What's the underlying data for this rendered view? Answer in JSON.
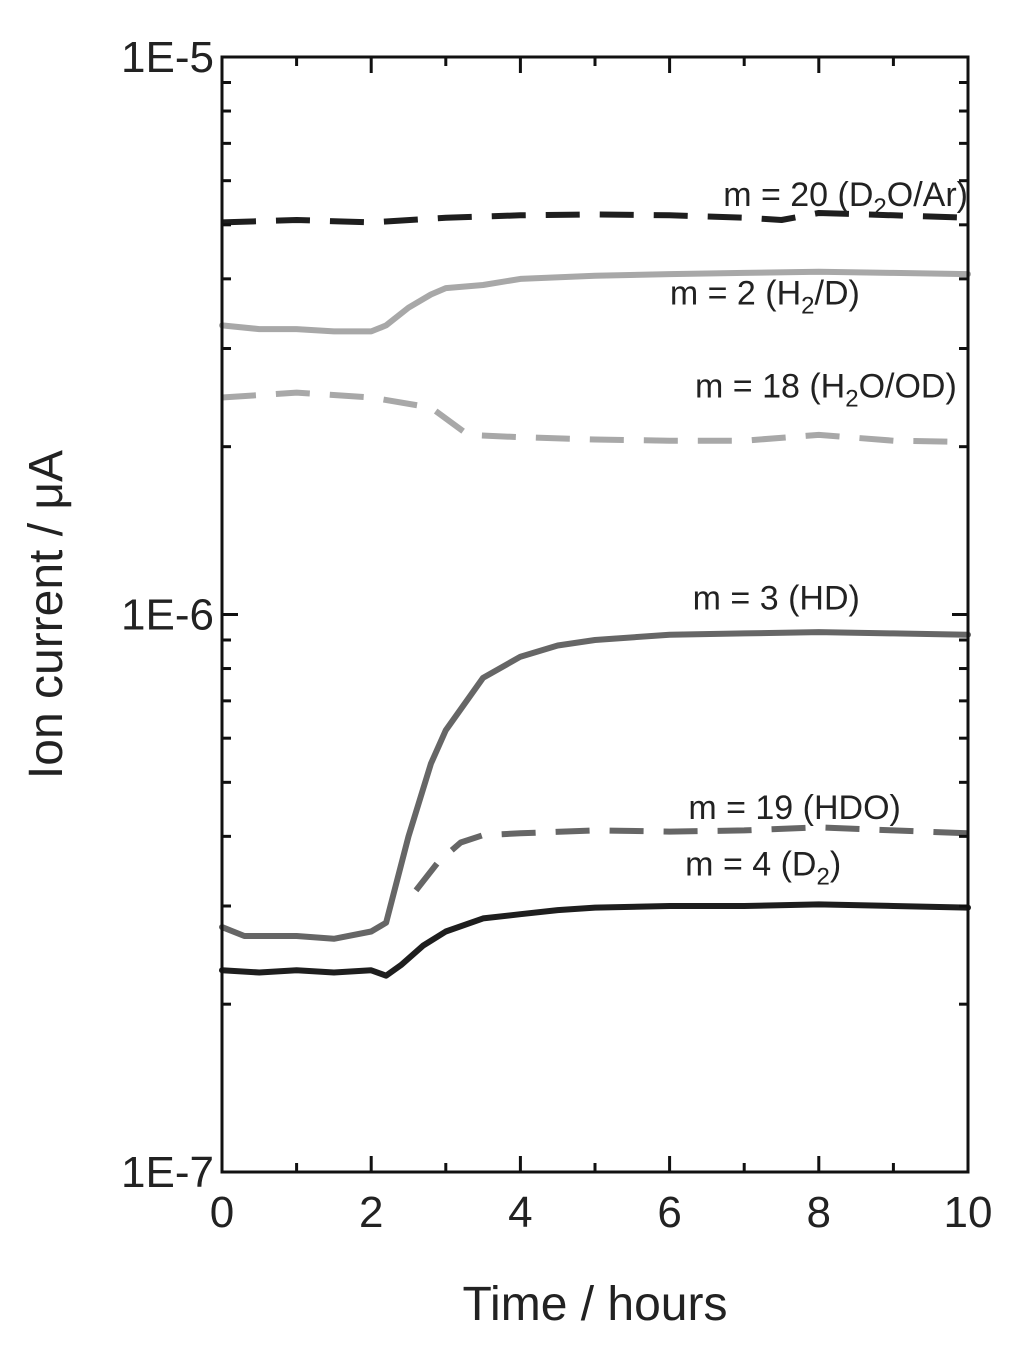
{
  "chart_data": {
    "type": "line",
    "xlabel": "Time / hours",
    "ylabel": "Ion current / μA",
    "xlim": [
      0,
      10
    ],
    "ylim": [
      1e-07,
      1e-05
    ],
    "y_scale": "log",
    "x_ticks": [
      "0",
      "2",
      "4",
      "6",
      "8",
      "10"
    ],
    "y_ticks": [
      "1E-7",
      "1E-6",
      "1E-5"
    ],
    "grid": false,
    "series": [
      {
        "name": "m = 20 (D2O/Ar)",
        "label_main": "m = 20 (D",
        "label_sub": "2",
        "label_tail": "O/Ar)",
        "color": "#1e1e1e",
        "dash": "dashed",
        "label_anchor": [
          10,
          5.4e-06
        ],
        "x": [
          0,
          1,
          2,
          3,
          4,
          5,
          6,
          7,
          7.5,
          8,
          9,
          10
        ],
        "y": [
          5.05e-06,
          5.1e-06,
          5.05e-06,
          5.15e-06,
          5.2e-06,
          5.22e-06,
          5.2e-06,
          5.15e-06,
          5.1e-06,
          5.25e-06,
          5.2e-06,
          5.15e-06
        ]
      },
      {
        "name": "m = 2 (H2/D)",
        "label_main": "m = 2 (H",
        "label_sub": "2",
        "label_tail": "/D)",
        "color": "#a8a8a8",
        "dash": "solid",
        "label_anchor": [
          8.55,
          3.6e-06
        ],
        "x": [
          0,
          0.5,
          1,
          1.5,
          2.0,
          2.2,
          2.5,
          2.8,
          3.0,
          3.5,
          4,
          5,
          6,
          7,
          8,
          9,
          10
        ],
        "y": [
          3.3e-06,
          3.25e-06,
          3.25e-06,
          3.22e-06,
          3.22e-06,
          3.3e-06,
          3.55e-06,
          3.75e-06,
          3.85e-06,
          3.9e-06,
          4e-06,
          4.05e-06,
          4.08e-06,
          4.1e-06,
          4.12e-06,
          4.1e-06,
          4.08e-06
        ]
      },
      {
        "name": "m = 18 (H2O/OD)",
        "label_main": "m = 18 (H",
        "label_sub": "2",
        "label_tail": "O/OD)",
        "color": "#a8a8a8",
        "dash": "dashed",
        "label_anchor": [
          9.85,
          2.45e-06
        ],
        "x": [
          0,
          1,
          2,
          2.8,
          3.3,
          4,
          5,
          6,
          7,
          8,
          9,
          10
        ],
        "y": [
          2.45e-06,
          2.5e-06,
          2.45e-06,
          2.35e-06,
          2.1e-06,
          2.08e-06,
          2.06e-06,
          2.05e-06,
          2.05e-06,
          2.1e-06,
          2.05e-06,
          2.04e-06
        ]
      },
      {
        "name": "m = 3 (HD)",
        "label_main": "m = 3 (HD)",
        "label_sub": "",
        "label_tail": "",
        "color": "#666666",
        "dash": "solid",
        "label_anchor": [
          8.55,
          1.02e-06
        ],
        "x": [
          0,
          0.3,
          0.5,
          1,
          1.5,
          2.0,
          2.2,
          2.5,
          2.8,
          3.0,
          3.5,
          4,
          4.5,
          5,
          6,
          7,
          8,
          9,
          10
        ],
        "y": [
          2.75e-07,
          2.65e-07,
          2.65e-07,
          2.65e-07,
          2.62e-07,
          2.7e-07,
          2.8e-07,
          4e-07,
          5.4e-07,
          6.2e-07,
          7.7e-07,
          8.4e-07,
          8.8e-07,
          9e-07,
          9.2e-07,
          9.25e-07,
          9.3e-07,
          9.25e-07,
          9.2e-07
        ]
      },
      {
        "name": "m = 19 (HDO)",
        "label_main": "m = 19 (HDO)",
        "label_sub": "",
        "label_tail": "",
        "color": "#666666",
        "dash": "dashed",
        "label_anchor": [
          9.1,
          4.3e-07
        ],
        "x": [
          2.6,
          2.9,
          3.2,
          3.5,
          4,
          5,
          6,
          7,
          8,
          9,
          10
        ],
        "y": [
          3.2e-07,
          3.6e-07,
          3.9e-07,
          4.02e-07,
          4.05e-07,
          4.1e-07,
          4.08e-07,
          4.1e-07,
          4.15e-07,
          4.1e-07,
          4.05e-07
        ]
      },
      {
        "name": "m = 4 (D2)",
        "label_main": "m = 4 (D",
        "label_sub": "2",
        "label_tail": ")",
        "color": "#1e1e1e",
        "dash": "solid",
        "label_anchor": [
          8.3,
          3.4e-07
        ],
        "x": [
          0,
          0.5,
          1,
          1.5,
          2.0,
          2.2,
          2.4,
          2.7,
          3.0,
          3.5,
          4,
          4.5,
          5,
          6,
          7,
          8,
          9,
          10
        ],
        "y": [
          2.3e-07,
          2.28e-07,
          2.3e-07,
          2.28e-07,
          2.3e-07,
          2.25e-07,
          2.35e-07,
          2.55e-07,
          2.7e-07,
          2.85e-07,
          2.9e-07,
          2.95e-07,
          2.98e-07,
          3e-07,
          3e-07,
          3.02e-07,
          3e-07,
          2.98e-07
        ]
      }
    ]
  }
}
